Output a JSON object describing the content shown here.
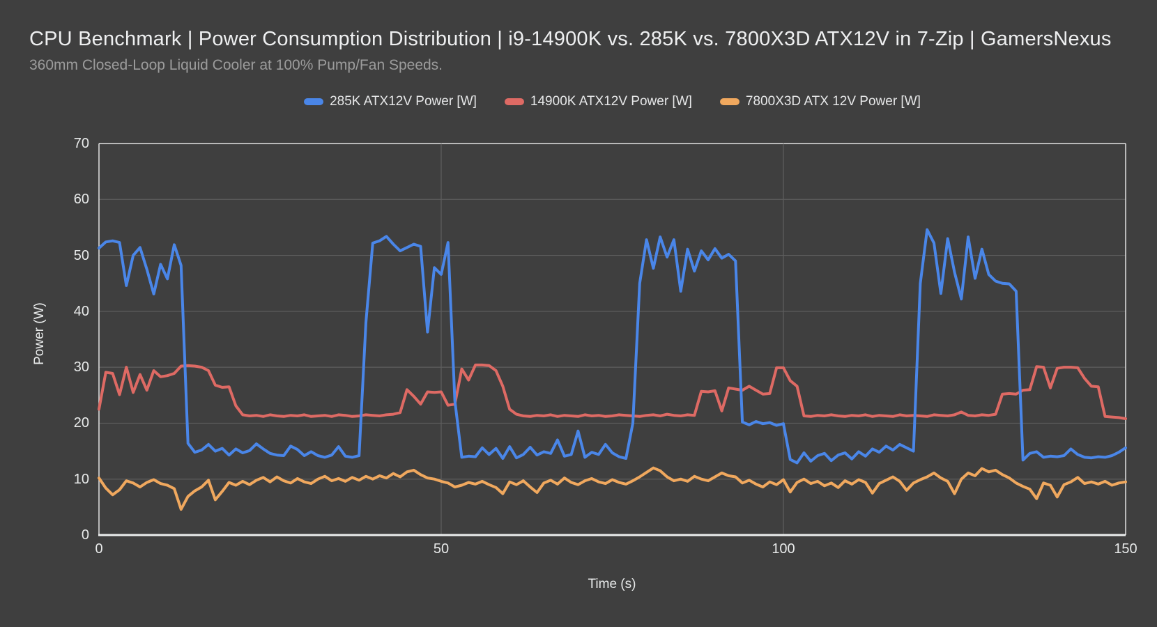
{
  "header": {
    "title": "CPU Benchmark | Power Consumption Distribution | i9-14900K vs. 285K vs. 7800X3D ATX12V in 7-Zip | GamersNexus",
    "subtitle": "360mm Closed-Loop Liquid Cooler at 100% Pump/Fan Speeds."
  },
  "axes": {
    "y_title": "Power (W)",
    "x_title": "Time (s)",
    "y_ticks": [
      0,
      10,
      20,
      30,
      40,
      50,
      60,
      70
    ],
    "x_ticks": [
      0,
      50,
      100,
      150
    ]
  },
  "colors": {
    "background": "#3f3f3f",
    "grid": "#5e5e5e",
    "axis_light": "#e2e2e2",
    "baseline": "#eceeee",
    "title_text": "#eeeff0",
    "subtitle_text": "#9c9c9c",
    "tick_text": "#e8eaea",
    "series_blue": "#4a86e8",
    "series_red": "#de6a64",
    "series_orange": "#f0a85e"
  },
  "chart_data": {
    "type": "line",
    "title": "CPU Benchmark | Power Consumption Distribution | i9-14900K vs. 285K vs. 7800X3D ATX12V in 7-Zip | GamersNexus",
    "subtitle": "360mm Closed-Loop Liquid Cooler at 100% Pump/Fan Speeds.",
    "xlabel": "Time (s)",
    "ylabel": "Power (W)",
    "xlim": [
      0,
      150
    ],
    "ylim": [
      0,
      70
    ],
    "x_start": 0,
    "x_step_seconds": 1,
    "grid": "on",
    "legend_position": "top-center",
    "series": [
      {
        "name": "285K ATX12V Power [W]",
        "color": "#4a86e8",
        "values": [
          51.3,
          52.4,
          52.6,
          52.3,
          44.6,
          50.0,
          51.4,
          47.5,
          43.1,
          48.4,
          45.8,
          51.9,
          48.2,
          16.4,
          14.8,
          15.2,
          16.2,
          15.0,
          15.5,
          14.3,
          15.4,
          14.7,
          15.1,
          16.3,
          15.4,
          14.6,
          14.3,
          14.2,
          15.9,
          15.3,
          14.2,
          14.9,
          14.2,
          13.9,
          14.3,
          15.8,
          14.1,
          13.9,
          14.2,
          38.0,
          52.2,
          52.6,
          53.4,
          52.0,
          50.8,
          51.4,
          52.0,
          51.6,
          36.3,
          47.8,
          46.6,
          52.3,
          24.0,
          13.9,
          14.1,
          14.0,
          15.6,
          14.4,
          15.5,
          13.7,
          15.8,
          13.8,
          14.4,
          15.7,
          14.3,
          14.9,
          14.6,
          17.0,
          14.1,
          14.4,
          18.6,
          13.9,
          14.8,
          14.4,
          16.2,
          14.7,
          14.0,
          13.7,
          20.0,
          45.0,
          52.8,
          47.7,
          53.3,
          49.7,
          52.8,
          43.6,
          51.1,
          47.2,
          50.8,
          49.2,
          51.2,
          49.5,
          50.2,
          49.0,
          20.2,
          19.7,
          20.3,
          19.9,
          20.1,
          19.6,
          19.9,
          13.5,
          12.9,
          14.7,
          13.2,
          14.2,
          14.6,
          13.3,
          14.3,
          14.7,
          13.6,
          14.9,
          14.1,
          15.4,
          14.8,
          15.9,
          15.2,
          16.2,
          15.6,
          15.0,
          45.0,
          54.6,
          52.2,
          43.2,
          53.0,
          47.0,
          42.2,
          53.3,
          45.9,
          51.1,
          46.6,
          45.4,
          45.0,
          44.9,
          43.6,
          13.4,
          14.6,
          14.9,
          13.9,
          14.1,
          14.0,
          14.2,
          15.4,
          14.4,
          13.9,
          13.8,
          14.0,
          13.9,
          14.2,
          14.8,
          15.6
        ]
      },
      {
        "name": "14900K ATX12V Power [W]",
        "color": "#de6a64",
        "values": [
          22.5,
          29.1,
          28.9,
          25.1,
          30.0,
          25.5,
          28.7,
          25.9,
          29.4,
          28.3,
          28.5,
          28.9,
          30.2,
          30.3,
          30.2,
          30.0,
          29.4,
          26.8,
          26.4,
          26.5,
          23.1,
          21.5,
          21.3,
          21.4,
          21.2,
          21.5,
          21.3,
          21.2,
          21.4,
          21.3,
          21.5,
          21.2,
          21.3,
          21.4,
          21.2,
          21.5,
          21.4,
          21.2,
          21.3,
          21.5,
          21.4,
          21.3,
          21.5,
          21.6,
          21.9,
          26.0,
          24.8,
          23.4,
          25.6,
          25.5,
          25.6,
          23.2,
          23.4,
          29.7,
          27.7,
          30.4,
          30.4,
          30.3,
          29.4,
          26.6,
          22.5,
          21.6,
          21.3,
          21.2,
          21.4,
          21.3,
          21.5,
          21.2,
          21.4,
          21.3,
          21.2,
          21.5,
          21.3,
          21.4,
          21.2,
          21.3,
          21.5,
          21.4,
          21.3,
          21.2,
          21.4,
          21.5,
          21.3,
          21.6,
          21.4,
          21.3,
          21.5,
          21.4,
          25.7,
          25.6,
          25.8,
          22.2,
          26.3,
          26.1,
          25.9,
          26.6,
          25.9,
          25.2,
          25.3,
          29.9,
          29.9,
          27.6,
          26.6,
          21.3,
          21.2,
          21.4,
          21.3,
          21.5,
          21.3,
          21.2,
          21.4,
          21.3,
          21.5,
          21.2,
          21.4,
          21.3,
          21.2,
          21.5,
          21.3,
          21.4,
          21.3,
          21.2,
          21.5,
          21.4,
          21.3,
          21.5,
          22.0,
          21.4,
          21.3,
          21.5,
          21.4,
          21.6,
          25.2,
          25.3,
          25.2,
          25.9,
          26.0,
          30.1,
          30.0,
          26.3,
          29.8,
          30.0,
          30.0,
          29.9,
          28.0,
          26.6,
          26.5,
          21.2,
          21.1,
          21.0,
          20.8
        ]
      },
      {
        "name": "7800X3D ATX 12V Power [W]",
        "color": "#f0a85e",
        "values": [
          10.2,
          8.4,
          7.2,
          8.1,
          9.7,
          9.3,
          8.6,
          9.4,
          9.9,
          9.2,
          8.9,
          8.3,
          4.6,
          6.9,
          7.9,
          8.6,
          9.8,
          6.3,
          7.8,
          9.4,
          8.9,
          9.6,
          9.0,
          9.8,
          10.3,
          9.5,
          10.4,
          9.7,
          9.3,
          10.1,
          9.5,
          9.2,
          10.0,
          10.5,
          9.7,
          10.1,
          9.6,
          10.3,
          9.8,
          10.5,
          10.0,
          10.6,
          10.2,
          11.0,
          10.4,
          11.3,
          11.6,
          10.8,
          10.2,
          10.0,
          9.6,
          9.3,
          8.6,
          8.9,
          9.4,
          9.1,
          9.6,
          9.0,
          8.5,
          7.4,
          9.5,
          9.0,
          9.7,
          8.6,
          7.6,
          9.3,
          9.8,
          9.1,
          10.2,
          9.4,
          9.0,
          9.7,
          10.1,
          9.5,
          9.2,
          9.9,
          9.4,
          9.1,
          9.7,
          10.4,
          11.2,
          12.0,
          11.5,
          10.4,
          9.7,
          10.0,
          9.6,
          10.5,
          10.0,
          9.7,
          10.4,
          11.1,
          10.6,
          10.4,
          9.3,
          9.8,
          9.1,
          8.6,
          9.5,
          9.0,
          9.9,
          7.7,
          9.4,
          10.0,
          9.2,
          9.6,
          8.8,
          9.3,
          8.5,
          9.7,
          9.1,
          9.9,
          9.4,
          7.5,
          9.2,
          9.8,
          10.4,
          9.6,
          8.0,
          9.3,
          9.9,
          10.4,
          11.1,
          10.2,
          9.6,
          7.4,
          10.0,
          11.1,
          10.6,
          11.9,
          11.3,
          11.6,
          10.8,
          10.2,
          9.3,
          8.7,
          8.2,
          6.5,
          9.3,
          8.9,
          6.8,
          9.0,
          9.5,
          10.3,
          9.2,
          9.5,
          9.1,
          9.6,
          8.9,
          9.3,
          9.5
        ]
      }
    ]
  }
}
